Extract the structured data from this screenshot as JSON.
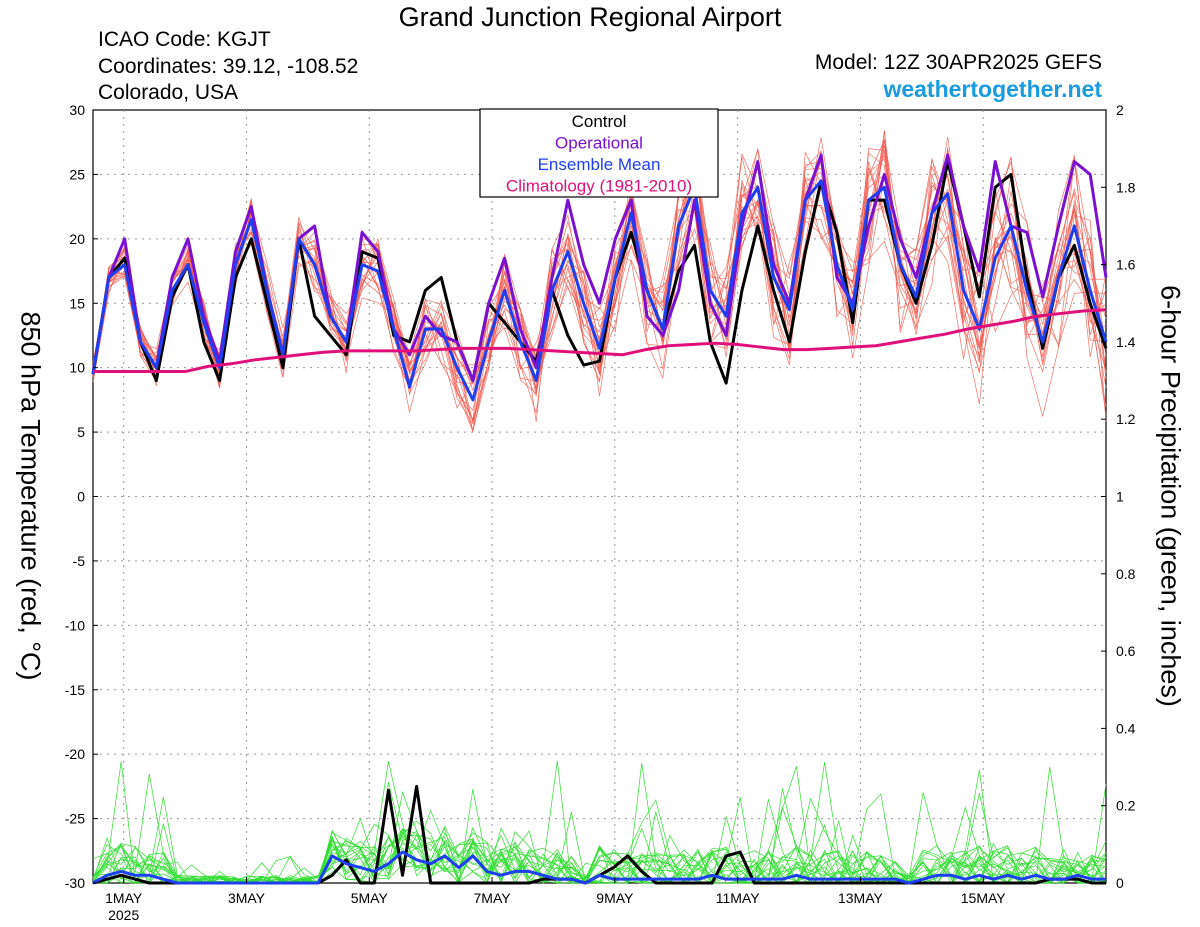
{
  "header": {
    "title": "Grand Junction Regional Airport",
    "icao": "ICAO Code: KGJT",
    "coordinates": "Coordinates: 39.12, -108.52",
    "region": "Colorado, USA",
    "model": "Model: 12Z 30APR2025 GEFS",
    "site": "weathertogether.net"
  },
  "colors": {
    "control": "#000000",
    "operational": "#7a10d0",
    "ensemble_mean": "#1e3ff0",
    "climatology": "#e0107a",
    "members_temp": "#f05a50",
    "members_precip": "#30dd30",
    "site": "#1a9be0"
  },
  "chart_data": {
    "type": "line",
    "title": "Grand Junction Regional Airport",
    "ylabel": "850 hPa Temperature (red, °C)",
    "y2label": "6-hour Precipitation (green, inches)",
    "ylim": [
      -30,
      30
    ],
    "y2lim": [
      0,
      2
    ],
    "yticks": [
      30,
      25,
      20,
      15,
      10,
      5,
      0,
      -5,
      -10,
      -15,
      -20,
      -25,
      -30
    ],
    "y2ticks": [
      2,
      1.8,
      1.6,
      1.4,
      1.2,
      1,
      0.8,
      0.6,
      0.4,
      0.2,
      0
    ],
    "xlim": [
      0,
      16.5
    ],
    "x_ticks": [
      {
        "x": 0.5,
        "label": "1MAY",
        "sub": "2025"
      },
      {
        "x": 2.5,
        "label": "3MAY",
        "sub": ""
      },
      {
        "x": 4.5,
        "label": "5MAY",
        "sub": ""
      },
      {
        "x": 6.5,
        "label": "7MAY",
        "sub": ""
      },
      {
        "x": 8.5,
        "label": "9MAY",
        "sub": ""
      },
      {
        "x": 10.5,
        "label": "11MAY",
        "sub": ""
      },
      {
        "x": 12.5,
        "label": "13MAY",
        "sub": ""
      },
      {
        "x": 14.5,
        "label": "15MAY",
        "sub": ""
      }
    ],
    "grid": true,
    "legend_position": "top-center",
    "legend": [
      "Control",
      "Operational",
      "Ensemble Mean",
      "Climatology (1981-2010)"
    ],
    "series": [
      {
        "name": "Control",
        "color": "#000000",
        "axis": "temperature",
        "values": [
          9.5,
          17,
          18.5,
          12,
          9,
          15.5,
          18,
          12,
          9,
          17,
          20,
          15,
          10,
          20,
          14,
          12.5,
          11,
          19,
          18.5,
          12.5,
          12,
          16,
          17,
          12,
          9,
          15,
          13.5,
          12,
          10.5,
          16,
          12.5,
          10.2,
          10.5,
          17,
          20.5,
          16,
          13,
          17.5,
          19.5,
          12,
          8.8,
          16,
          21,
          16,
          12,
          19,
          24.5,
          20.5,
          13.5,
          23,
          23,
          18,
          15,
          19.5,
          26,
          21,
          15.5,
          24,
          25,
          17,
          11.5,
          17,
          19.5,
          15,
          11.5
        ]
      },
      {
        "name": "Operational",
        "color": "#7a10d0",
        "axis": "temperature",
        "values": [
          9.5,
          17,
          20,
          12,
          10,
          17,
          20,
          14,
          10.5,
          19,
          22.5,
          16,
          11,
          20,
          21,
          14,
          12,
          20.5,
          19,
          13,
          11,
          14,
          12.5,
          12,
          9,
          15,
          18.5,
          13,
          10,
          17,
          23,
          18,
          15,
          20,
          23,
          14,
          12.5,
          16,
          23,
          15,
          12.5,
          21,
          26,
          18,
          15,
          23,
          26.5,
          17,
          15,
          21,
          25,
          20,
          17,
          22,
          26.5,
          21,
          17.5,
          26,
          21,
          20.5,
          15.5,
          21,
          26,
          25,
          17
        ]
      },
      {
        "name": "Ensemble Mean",
        "color": "#1e3ff0",
        "axis": "temperature",
        "values": [
          9.5,
          17,
          18,
          12,
          10,
          16,
          18,
          13.5,
          10,
          18,
          21.5,
          16,
          11,
          20,
          18,
          14,
          12,
          18,
          17.5,
          13,
          8.5,
          13,
          13,
          10,
          7.5,
          12,
          16,
          12,
          9,
          16,
          19,
          15,
          11.5,
          17,
          22,
          16,
          13,
          21,
          24,
          16,
          14,
          22,
          24,
          17,
          14.5,
          23,
          24.5,
          18,
          14.5,
          23,
          24,
          18,
          15.5,
          22,
          23.5,
          16,
          13,
          18.5,
          21,
          16,
          12,
          17,
          21,
          16,
          12
        ]
      },
      {
        "name": "Climatology (1981-2010)",
        "color": "#e0107a",
        "axis": "temperature",
        "values": [
          9.7,
          9.7,
          9.7,
          9.7,
          9.7,
          10.1,
          10.3,
          10.6,
          10.8,
          11.0,
          11.2,
          11.3,
          11.3,
          11.3,
          11.3,
          11.4,
          11.5,
          11.5,
          11.5,
          11.4,
          11.3,
          11.2,
          11.1,
          11.0,
          11.4,
          11.7,
          11.8,
          11.9,
          11.8,
          11.6,
          11.4,
          11.4,
          11.5,
          11.6,
          11.7,
          12.0,
          12.3,
          12.6,
          13.0,
          13.3,
          13.6,
          14.0,
          14.2,
          14.4,
          14.5
        ]
      },
      {
        "name": "Control Precip",
        "color": "#000000",
        "axis": "precipitation",
        "values": [
          0,
          0.01,
          0.02,
          0.01,
          0,
          0,
          0,
          0,
          0,
          0,
          0,
          0,
          0,
          0,
          0,
          0,
          0,
          0.02,
          0.06,
          0,
          0,
          0.24,
          0.02,
          0.25,
          0,
          0,
          0,
          0,
          0,
          0,
          0,
          0,
          0.01,
          0.01,
          0.01,
          0,
          0.02,
          0.04,
          0.07,
          0.03,
          0,
          0,
          0,
          0,
          0,
          0.07,
          0.08,
          0,
          0,
          0,
          0,
          0,
          0,
          0,
          0,
          0,
          0,
          0,
          0,
          0,
          0,
          0,
          0,
          0,
          0,
          0,
          0,
          0,
          0.01,
          0.01,
          0.01,
          0,
          0
        ]
      },
      {
        "name": "Ensemble Mean Precip",
        "color": "#1e3ff0",
        "axis": "precipitation",
        "values": [
          0,
          0.02,
          0.03,
          0.02,
          0.02,
          0.01,
          0,
          0,
          0,
          0,
          0,
          0,
          0,
          0,
          0,
          0,
          0,
          0.07,
          0.05,
          0.04,
          0.03,
          0.05,
          0.08,
          0.06,
          0.05,
          0.07,
          0.04,
          0.07,
          0.03,
          0.02,
          0.03,
          0.03,
          0.02,
          0.01,
          0.01,
          0,
          0.02,
          0.01,
          0.01,
          0.01,
          0.01,
          0.01,
          0.01,
          0.01,
          0.02,
          0.01,
          0.01,
          0.01,
          0.01,
          0.01,
          0.02,
          0.01,
          0.01,
          0.01,
          0.01,
          0.01,
          0.01,
          0.01,
          0,
          0.01,
          0.02,
          0.02,
          0.01,
          0.02,
          0.01,
          0.02,
          0.01,
          0.02,
          0.01,
          0.01,
          0.02,
          0.01,
          0.01
        ]
      }
    ]
  }
}
